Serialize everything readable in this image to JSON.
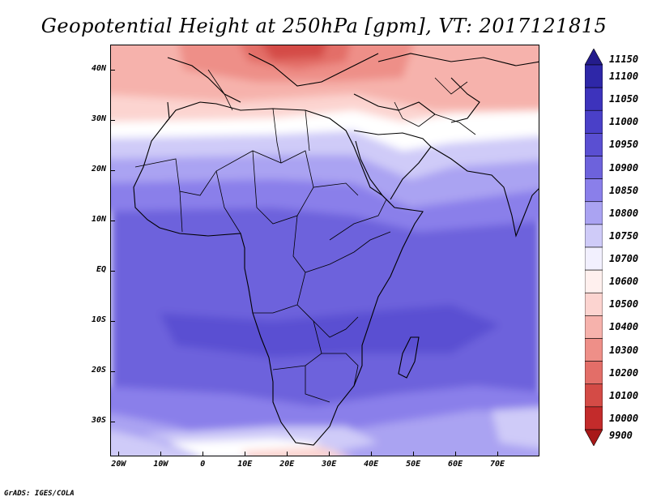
{
  "title": "Geopotential Height at 250hPa [gpm], VT: 2017121815",
  "credit": "GrADS: IGES/COLA",
  "map": {
    "lon_range": [
      -22,
      80
    ],
    "lat_range": [
      -37,
      45
    ],
    "lat_labels": [
      {
        "text": "40N",
        "lat": 40
      },
      {
        "text": "30N",
        "lat": 30
      },
      {
        "text": "20N",
        "lat": 20
      },
      {
        "text": "10N",
        "lat": 10
      },
      {
        "text": "EQ",
        "lat": 0
      },
      {
        "text": "10S",
        "lat": -10
      },
      {
        "text": "20S",
        "lat": -20
      },
      {
        "text": "30S",
        "lat": -30
      }
    ],
    "lon_labels": [
      {
        "text": "20W",
        "lon": -20
      },
      {
        "text": "10W",
        "lon": -10
      },
      {
        "text": "0",
        "lon": 0
      },
      {
        "text": "10E",
        "lon": 10
      },
      {
        "text": "20E",
        "lon": 20
      },
      {
        "text": "30E",
        "lon": 30
      },
      {
        "text": "40E",
        "lon": 40
      },
      {
        "text": "50E",
        "lon": 50
      },
      {
        "text": "60E",
        "lon": 60
      },
      {
        "text": "70E",
        "lon": 70
      }
    ]
  },
  "colorbar": {
    "labels": [
      "11150",
      "11100",
      "11050",
      "11000",
      "10950",
      "10900",
      "10850",
      "10800",
      "10750",
      "10700",
      "10600",
      "10500",
      "10400",
      "10300",
      "10200",
      "10100",
      "10000",
      "9900"
    ],
    "colors": [
      "#241c8c",
      "#2e27a8",
      "#3d33bc",
      "#4a40c8",
      "#5a4fd2",
      "#6d62dc",
      "#8a7fea",
      "#aaa3f2",
      "#cfcbf8",
      "#f2f0fe",
      "#fff0ee",
      "#fcd4d0",
      "#f6b2ac",
      "#ee8f88",
      "#e36e68",
      "#d44b46",
      "#c32b2b",
      "#a81818"
    ]
  }
}
